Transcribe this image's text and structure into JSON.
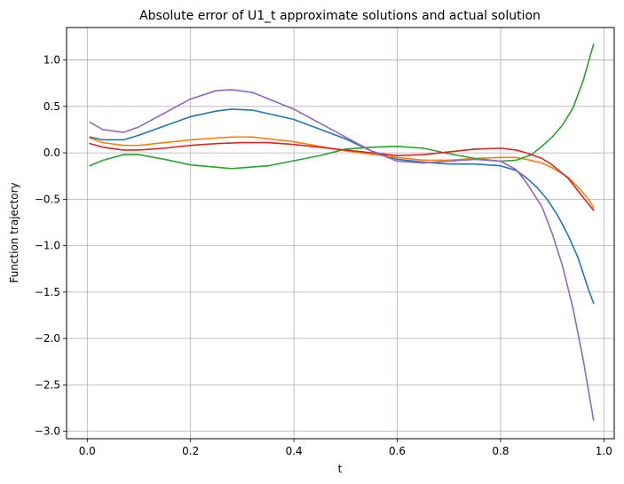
{
  "chart_data": {
    "type": "line",
    "title": "Absolute error of U1_t approximate solutions and actual solution",
    "xlabel": "t",
    "ylabel": "Function trajectory",
    "xlim": [
      -0.04,
      1.02
    ],
    "ylim": [
      -3.08,
      1.35
    ],
    "xticks": [
      0.0,
      0.2,
      0.4,
      0.6,
      0.8,
      1.0
    ],
    "xtick_labels": [
      "0.0",
      "0.2",
      "0.4",
      "0.6",
      "0.8",
      "1.0"
    ],
    "yticks": [
      1.0,
      0.5,
      0.0,
      -0.5,
      -1.0,
      -1.5,
      -2.0,
      -2.5,
      -3.0
    ],
    "ytick_labels": [
      "1.0",
      "0.5",
      "0.0",
      "−0.5",
      "−1.0",
      "−1.5",
      "−2.0",
      "−2.5",
      "−3.0"
    ],
    "grid": true,
    "legend": false,
    "series": [
      {
        "color": "#1f77b4",
        "x": [
          0.005,
          0.03,
          0.07,
          0.1,
          0.15,
          0.2,
          0.25,
          0.28,
          0.32,
          0.4,
          0.5,
          0.55,
          0.6,
          0.65,
          0.7,
          0.75,
          0.8,
          0.83,
          0.85,
          0.87,
          0.89,
          0.91,
          0.93,
          0.95,
          0.97,
          0.98
        ],
        "y": [
          0.17,
          0.14,
          0.14,
          0.19,
          0.29,
          0.39,
          0.45,
          0.47,
          0.46,
          0.36,
          0.15,
          0.02,
          -0.07,
          -0.1,
          -0.12,
          -0.12,
          -0.14,
          -0.19,
          -0.27,
          -0.37,
          -0.5,
          -0.67,
          -0.88,
          -1.13,
          -1.47,
          -1.62
        ]
      },
      {
        "color": "#ff7f0e",
        "x": [
          0.005,
          0.03,
          0.07,
          0.1,
          0.15,
          0.2,
          0.25,
          0.28,
          0.32,
          0.4,
          0.5,
          0.6,
          0.65,
          0.7,
          0.75,
          0.8,
          0.83,
          0.85,
          0.88,
          0.9,
          0.93,
          0.95,
          0.97,
          0.98
        ],
        "y": [
          0.16,
          0.11,
          0.08,
          0.08,
          0.11,
          0.14,
          0.16,
          0.17,
          0.17,
          0.12,
          0.02,
          -0.05,
          -0.08,
          -0.08,
          -0.06,
          -0.05,
          -0.05,
          -0.07,
          -0.11,
          -0.16,
          -0.26,
          -0.37,
          -0.5,
          -0.59
        ]
      },
      {
        "color": "#2ca02c",
        "x": [
          0.005,
          0.03,
          0.07,
          0.1,
          0.15,
          0.2,
          0.28,
          0.35,
          0.45,
          0.5,
          0.55,
          0.6,
          0.65,
          0.7,
          0.75,
          0.8,
          0.83,
          0.86,
          0.88,
          0.9,
          0.92,
          0.94,
          0.96,
          0.98
        ],
        "y": [
          -0.14,
          -0.08,
          -0.02,
          -0.02,
          -0.07,
          -0.13,
          -0.17,
          -0.14,
          -0.03,
          0.04,
          0.06,
          0.07,
          0.05,
          -0.01,
          -0.06,
          -0.09,
          -0.08,
          -0.02,
          0.07,
          0.17,
          0.3,
          0.48,
          0.78,
          1.17
        ]
      },
      {
        "color": "#d62728",
        "x": [
          0.005,
          0.03,
          0.07,
          0.1,
          0.15,
          0.2,
          0.25,
          0.3,
          0.35,
          0.4,
          0.5,
          0.6,
          0.65,
          0.7,
          0.75,
          0.8,
          0.83,
          0.85,
          0.88,
          0.9,
          0.93,
          0.95,
          0.97,
          0.98
        ],
        "y": [
          0.1,
          0.06,
          0.03,
          0.03,
          0.05,
          0.08,
          0.1,
          0.11,
          0.11,
          0.09,
          0.03,
          -0.03,
          -0.02,
          0.01,
          0.04,
          0.05,
          0.03,
          0.0,
          -0.06,
          -0.13,
          -0.27,
          -0.41,
          -0.55,
          -0.62
        ]
      },
      {
        "color": "#9467bd",
        "x": [
          0.005,
          0.03,
          0.07,
          0.1,
          0.15,
          0.2,
          0.25,
          0.28,
          0.32,
          0.4,
          0.5,
          0.55,
          0.6,
          0.65,
          0.7,
          0.75,
          0.8,
          0.83,
          0.85,
          0.88,
          0.9,
          0.92,
          0.94,
          0.96,
          0.98
        ],
        "y": [
          0.33,
          0.25,
          0.22,
          0.28,
          0.43,
          0.58,
          0.67,
          0.68,
          0.65,
          0.47,
          0.17,
          0.02,
          -0.09,
          -0.11,
          -0.09,
          -0.07,
          -0.09,
          -0.18,
          -0.32,
          -0.58,
          -0.87,
          -1.22,
          -1.67,
          -2.23,
          -2.88
        ]
      }
    ]
  }
}
